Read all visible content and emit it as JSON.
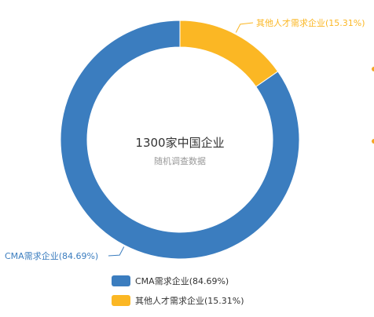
{
  "chart_data": {
    "type": "pie",
    "center_title": "1300家中国企业",
    "center_subtitle": "随机调查数据",
    "slices": [
      {
        "label": "CMA需求企业(84.69%)",
        "value": 84.69,
        "color": "#3b7dbf"
      },
      {
        "label": "其他人才需求企业(15.31%)",
        "value": 15.31,
        "color": "#fbb724"
      }
    ],
    "legend": {
      "position": "bottom-center",
      "items": [
        {
          "label": "CMA需求企业(84.69%)",
          "color": "#3b7dbf"
        },
        {
          "label": "其他人才需求企业(15.31%)",
          "color": "#fbb724"
        }
      ]
    }
  }
}
